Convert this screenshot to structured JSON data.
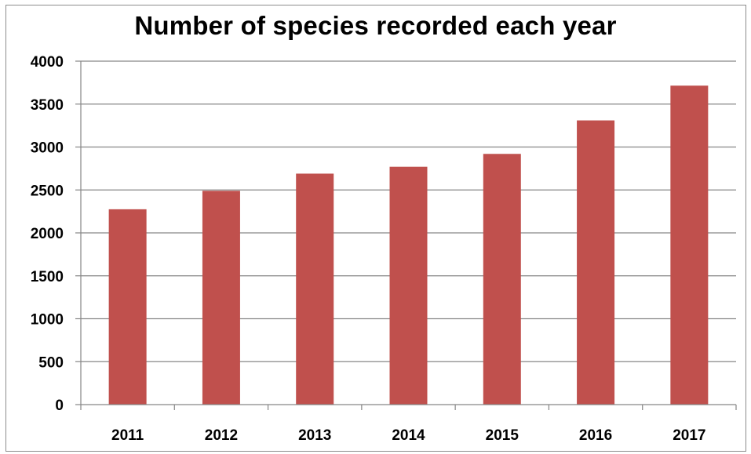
{
  "chart_data": {
    "type": "bar",
    "title": "Number of species recorded each year",
    "xlabel": "",
    "ylabel": "",
    "categories": [
      "2011",
      "2012",
      "2013",
      "2014",
      "2015",
      "2016",
      "2017"
    ],
    "values": [
      2275,
      2490,
      2690,
      2770,
      2920,
      3310,
      3715
    ],
    "ylim": [
      0,
      4000
    ],
    "yticks": [
      "0",
      "500",
      "1000",
      "1500",
      "2000",
      "2500",
      "3000",
      "3500",
      "4000"
    ],
    "grid": true,
    "legend": "none",
    "bar_color": "#c0504d",
    "grid_color": "#868686"
  }
}
